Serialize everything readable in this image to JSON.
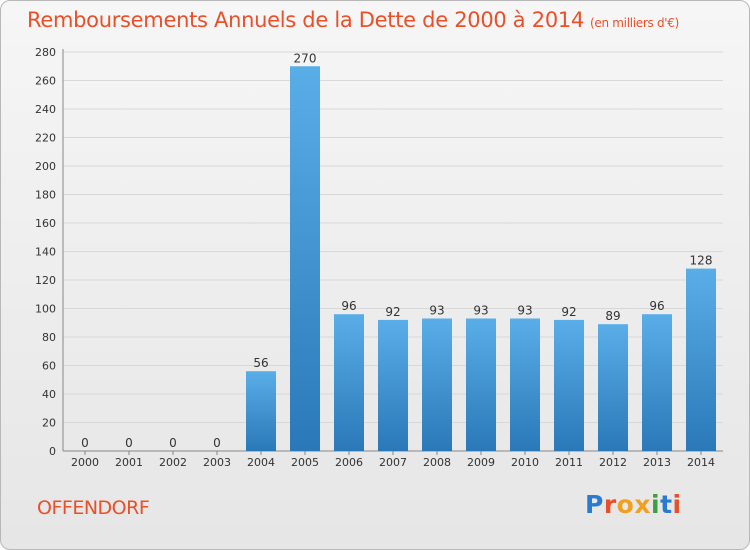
{
  "title": "Remboursements Annuels de la Dette de 2000 à 2014",
  "unit_note": "(en milliers d'€)",
  "commune": "OFFENDORF",
  "logo": "Proxiti",
  "colors": {
    "title": "#e8502a",
    "bar_top": "#5aaee8",
    "bar_bottom": "#2a78b8",
    "grid": "#d8d8d8",
    "axis": "#888888",
    "logo": [
      "#2a7bd0",
      "#e8502a",
      "#f0a020",
      "#f0a020",
      "#3aa040",
      "#2a7bd0",
      "#e8502a"
    ]
  },
  "chart_data": {
    "type": "bar",
    "title": "Remboursements Annuels de la Dette de 2000 à 2014",
    "categories": [
      "2000",
      "2001",
      "2002",
      "2003",
      "2004",
      "2005",
      "2006",
      "2007",
      "2008",
      "2009",
      "2010",
      "2011",
      "2012",
      "2013",
      "2014"
    ],
    "values": [
      0,
      0,
      0,
      0,
      56,
      270,
      96,
      92,
      93,
      93,
      93,
      92,
      89,
      96,
      128
    ],
    "ylim": [
      0,
      280
    ],
    "yticks": [
      0,
      20,
      40,
      60,
      80,
      100,
      120,
      140,
      160,
      180,
      200,
      220,
      240,
      260,
      280
    ],
    "grid": true,
    "xlabel": "",
    "ylabel": ""
  }
}
